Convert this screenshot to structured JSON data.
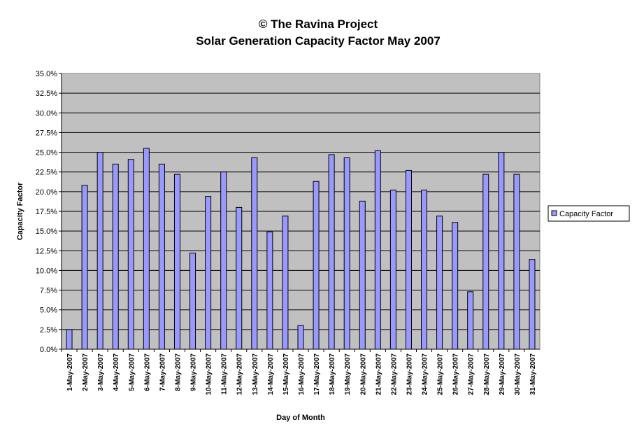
{
  "chart_data": {
    "type": "bar",
    "title": "© The Ravina Project",
    "subtitle": "Solar Generation Capacity Factor May 2007",
    "xlabel": "Day of Month",
    "ylabel": "Capacity Factor",
    "ylim": [
      0,
      35
    ],
    "yticks": [
      "0.0%",
      "2.5%",
      "5.0%",
      "7.5%",
      "10.0%",
      "12.5%",
      "15.0%",
      "17.5%",
      "20.0%",
      "22.5%",
      "25.0%",
      "27.5%",
      "30.0%",
      "32.5%",
      "35.0%"
    ],
    "grid": true,
    "legend": {
      "position": "right",
      "entries": [
        "Capacity Factor"
      ]
    },
    "colors": {
      "bar": "#9999FF",
      "plot_bg": "#C0C0C0"
    },
    "categories": [
      "1-May-2007",
      "2-May-2007",
      "3-May-2007",
      "4-May-2007",
      "5-May-2007",
      "6-May-2007",
      "7-May-2007",
      "8-May-2007",
      "9-May-2007",
      "10-May-2007",
      "11-May-2007",
      "12-May-2007",
      "13-May-2007",
      "14-May-2007",
      "15-May-2007",
      "16-May-2007",
      "17-May-2007",
      "18-May-2007",
      "19-May-2007",
      "20-May-2007",
      "21-May-2007",
      "22-May-2007",
      "23-May-2007",
      "24-May-2007",
      "25-May-2007",
      "26-May-2007",
      "27-May-2007",
      "28-May-2007",
      "29-May-2007",
      "30-May-2007",
      "31-May-2007"
    ],
    "series": [
      {
        "name": "Capacity Factor",
        "values": [
          2.5,
          20.8,
          25.0,
          23.5,
          24.1,
          25.5,
          23.5,
          22.2,
          12.2,
          19.4,
          22.5,
          18.0,
          24.3,
          14.9,
          16.9,
          3.0,
          21.3,
          24.7,
          24.3,
          18.8,
          25.2,
          20.2,
          22.7,
          20.2,
          16.9,
          16.1,
          7.3,
          22.2,
          25.0,
          22.2,
          11.4
        ]
      }
    ]
  }
}
